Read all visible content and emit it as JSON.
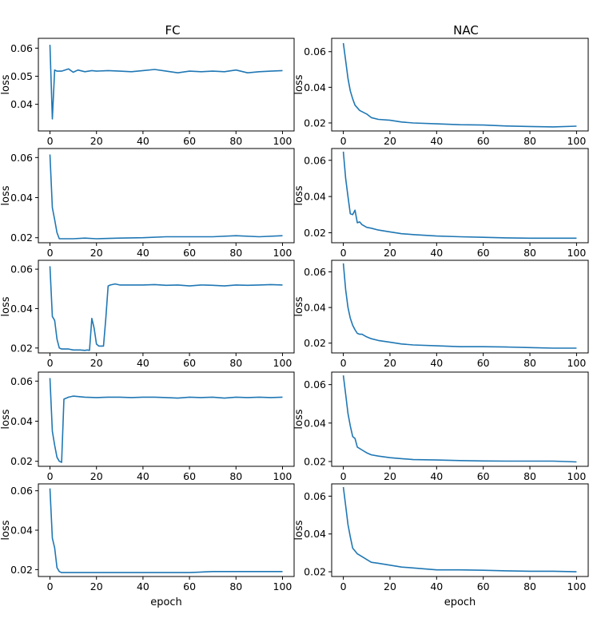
{
  "figure": {
    "col_titles": [
      "FC",
      "NAC"
    ],
    "ylabel": "loss",
    "xlabel": "epoch",
    "colors": {
      "line": "#1f77b4",
      "axes": "#000000",
      "background": "#ffffff"
    }
  },
  "chart_data": [
    {
      "type": "line",
      "title": "FC",
      "row": 1,
      "xlabel": "",
      "ylabel": "loss",
      "xlim": [
        -5,
        105
      ],
      "ylim": [
        0.0305,
        0.0635
      ],
      "xticks": [
        0,
        20,
        40,
        60,
        80,
        100
      ],
      "yticks": [
        0.04,
        0.05,
        0.06
      ],
      "series": [
        {
          "x": [
            0,
            1,
            2,
            3,
            5,
            8,
            10,
            12,
            15,
            18,
            20,
            25,
            30,
            35,
            40,
            45,
            50,
            55,
            60,
            65,
            70,
            75,
            80,
            85,
            90,
            95,
            100
          ],
          "y": [
            0.0612,
            0.0348,
            0.0522,
            0.0518,
            0.0518,
            0.0526,
            0.0514,
            0.0522,
            0.0516,
            0.052,
            0.0518,
            0.052,
            0.0518,
            0.0516,
            0.052,
            0.0524,
            0.0518,
            0.0512,
            0.0518,
            0.0516,
            0.0518,
            0.0516,
            0.0522,
            0.0512,
            0.0516,
            0.0518,
            0.052
          ]
        }
      ]
    },
    {
      "type": "line",
      "title": "NAC",
      "row": 1,
      "xlabel": "",
      "ylabel": "loss",
      "xlim": [
        -5,
        105
      ],
      "ylim": [
        0.0155,
        0.0675
      ],
      "xticks": [
        0,
        20,
        40,
        60,
        80,
        100
      ],
      "yticks": [
        0.02,
        0.04,
        0.06
      ],
      "series": [
        {
          "x": [
            0,
            1,
            2,
            3,
            4,
            5,
            7,
            10,
            12,
            15,
            20,
            25,
            30,
            40,
            50,
            60,
            70,
            80,
            90,
            100
          ],
          "y": [
            0.0648,
            0.055,
            0.045,
            0.038,
            0.0335,
            0.03,
            0.027,
            0.025,
            0.023,
            0.022,
            0.0215,
            0.0205,
            0.02,
            0.0195,
            0.019,
            0.0188,
            0.0183,
            0.018,
            0.0178,
            0.0182
          ]
        }
      ]
    },
    {
      "type": "line",
      "title": "",
      "row": 2,
      "xlabel": "",
      "ylabel": "loss",
      "xlim": [
        -5,
        105
      ],
      "ylim": [
        0.0175,
        0.0645
      ],
      "xticks": [
        0,
        20,
        40,
        60,
        80,
        100
      ],
      "yticks": [
        0.02,
        0.04,
        0.06
      ],
      "series": [
        {
          "x": [
            0,
            1,
            2,
            3,
            4,
            5,
            10,
            15,
            20,
            30,
            40,
            50,
            60,
            70,
            80,
            90,
            100
          ],
          "y": [
            0.0615,
            0.035,
            0.029,
            0.0225,
            0.0195,
            0.0195,
            0.0195,
            0.0198,
            0.0195,
            0.0198,
            0.02,
            0.0205,
            0.0205,
            0.0205,
            0.021,
            0.0205,
            0.021
          ]
        }
      ]
    },
    {
      "type": "line",
      "title": "",
      "row": 2,
      "xlabel": "",
      "ylabel": "loss",
      "xlim": [
        -5,
        105
      ],
      "ylim": [
        0.0145,
        0.0665
      ],
      "xticks": [
        0,
        20,
        40,
        60,
        80,
        100
      ],
      "yticks": [
        0.02,
        0.04,
        0.06
      ],
      "series": [
        {
          "x": [
            0,
            1,
            2,
            3,
            4,
            5,
            6,
            7,
            8,
            10,
            12,
            15,
            20,
            25,
            30,
            40,
            50,
            60,
            70,
            80,
            90,
            100
          ],
          "y": [
            0.0648,
            0.05,
            0.04,
            0.0305,
            0.03,
            0.0325,
            0.0255,
            0.026,
            0.0245,
            0.023,
            0.0225,
            0.0215,
            0.0205,
            0.0195,
            0.019,
            0.0182,
            0.0178,
            0.0175,
            0.0172,
            0.017,
            0.017,
            0.017
          ]
        }
      ]
    },
    {
      "type": "line",
      "title": "",
      "row": 3,
      "xlabel": "",
      "ylabel": "loss",
      "xlim": [
        -5,
        105
      ],
      "ylim": [
        0.0175,
        0.0645
      ],
      "xticks": [
        0,
        20,
        40,
        60,
        80,
        100
      ],
      "yticks": [
        0.02,
        0.04,
        0.06
      ],
      "series": [
        {
          "x": [
            0,
            1,
            2,
            3,
            4,
            5,
            8,
            10,
            13,
            15,
            16,
            17,
            18,
            19,
            20,
            21,
            22,
            23,
            24,
            25,
            26,
            28,
            30,
            35,
            40,
            45,
            50,
            55,
            60,
            65,
            70,
            75,
            80,
            85,
            90,
            95,
            100
          ],
          "y": [
            0.0615,
            0.036,
            0.034,
            0.0245,
            0.02,
            0.0195,
            0.0195,
            0.019,
            0.019,
            0.0188,
            0.019,
            0.0188,
            0.035,
            0.03,
            0.022,
            0.021,
            0.021,
            0.021,
            0.035,
            0.0515,
            0.052,
            0.0525,
            0.052,
            0.052,
            0.052,
            0.0522,
            0.0518,
            0.052,
            0.0515,
            0.052,
            0.0518,
            0.0515,
            0.052,
            0.0518,
            0.052,
            0.0522,
            0.052
          ]
        }
      ]
    },
    {
      "type": "line",
      "title": "",
      "row": 3,
      "xlabel": "",
      "ylabel": "loss",
      "xlim": [
        -5,
        105
      ],
      "ylim": [
        0.0145,
        0.0665
      ],
      "xticks": [
        0,
        20,
        40,
        60,
        80,
        100
      ],
      "yticks": [
        0.02,
        0.04,
        0.06
      ],
      "series": [
        {
          "x": [
            0,
            1,
            2,
            3,
            4,
            5,
            6,
            7,
            8,
            10,
            12,
            15,
            20,
            25,
            30,
            40,
            50,
            60,
            70,
            80,
            90,
            100
          ],
          "y": [
            0.0648,
            0.05,
            0.04,
            0.034,
            0.03,
            0.0275,
            0.0255,
            0.025,
            0.025,
            0.0235,
            0.0225,
            0.0215,
            0.0205,
            0.0195,
            0.019,
            0.0185,
            0.018,
            0.018,
            0.0178,
            0.0175,
            0.0172,
            0.0172
          ]
        }
      ]
    },
    {
      "type": "line",
      "title": "",
      "row": 4,
      "xlabel": "",
      "ylabel": "loss",
      "xlim": [
        -5,
        105
      ],
      "ylim": [
        0.0175,
        0.0645
      ],
      "xticks": [
        0,
        20,
        40,
        60,
        80,
        100
      ],
      "yticks": [
        0.02,
        0.04,
        0.06
      ],
      "series": [
        {
          "x": [
            0,
            1,
            2,
            3,
            4,
            5,
            6,
            8,
            10,
            15,
            20,
            25,
            30,
            35,
            40,
            45,
            50,
            55,
            60,
            65,
            70,
            75,
            80,
            85,
            90,
            95,
            100
          ],
          "y": [
            0.0615,
            0.035,
            0.028,
            0.022,
            0.02,
            0.0195,
            0.051,
            0.052,
            0.0525,
            0.052,
            0.0518,
            0.052,
            0.052,
            0.0518,
            0.052,
            0.052,
            0.0518,
            0.0515,
            0.052,
            0.0518,
            0.052,
            0.0515,
            0.052,
            0.0518,
            0.052,
            0.0518,
            0.052
          ]
        }
      ]
    },
    {
      "type": "line",
      "title": "",
      "row": 4,
      "xlabel": "",
      "ylabel": "loss",
      "xlim": [
        -5,
        105
      ],
      "ylim": [
        0.0175,
        0.0665
      ],
      "xticks": [
        0,
        20,
        40,
        60,
        80,
        100
      ],
      "yticks": [
        0.02,
        0.04,
        0.06
      ],
      "series": [
        {
          "x": [
            0,
            1,
            2,
            3,
            4,
            5,
            6,
            8,
            10,
            12,
            15,
            20,
            25,
            30,
            40,
            50,
            60,
            70,
            80,
            90,
            100
          ],
          "y": [
            0.0648,
            0.055,
            0.045,
            0.0385,
            0.033,
            0.032,
            0.0275,
            0.026,
            0.0245,
            0.0235,
            0.0228,
            0.022,
            0.0215,
            0.021,
            0.0208,
            0.0205,
            0.0203,
            0.0202,
            0.0202,
            0.0202,
            0.0198
          ]
        }
      ]
    },
    {
      "type": "line",
      "title": "",
      "row": 5,
      "xlabel": "epoch",
      "ylabel": "loss",
      "xlim": [
        -5,
        105
      ],
      "ylim": [
        0.0165,
        0.0635
      ],
      "xticks": [
        0,
        20,
        40,
        60,
        80,
        100
      ],
      "yticks": [
        0.02,
        0.04,
        0.06
      ],
      "series": [
        {
          "x": [
            0,
            1,
            2,
            3,
            4,
            5,
            6,
            8,
            10,
            15,
            20,
            30,
            40,
            50,
            60,
            70,
            80,
            90,
            100
          ],
          "y": [
            0.0612,
            0.036,
            0.031,
            0.021,
            0.019,
            0.0185,
            0.0185,
            0.0185,
            0.0185,
            0.0185,
            0.0185,
            0.0185,
            0.0185,
            0.0185,
            0.0185,
            0.019,
            0.019,
            0.019,
            0.019
          ]
        }
      ]
    },
    {
      "type": "line",
      "title": "",
      "row": 5,
      "xlabel": "epoch",
      "ylabel": "loss",
      "xlim": [
        -5,
        105
      ],
      "ylim": [
        0.0175,
        0.0665
      ],
      "xticks": [
        0,
        20,
        40,
        60,
        80,
        100
      ],
      "yticks": [
        0.02,
        0.04,
        0.06
      ],
      "series": [
        {
          "x": [
            0,
            1,
            2,
            3,
            4,
            5,
            6,
            8,
            10,
            12,
            15,
            20,
            25,
            30,
            40,
            50,
            60,
            70,
            80,
            90,
            100
          ],
          "y": [
            0.0648,
            0.055,
            0.045,
            0.0385,
            0.0325,
            0.031,
            0.0295,
            0.028,
            0.0265,
            0.025,
            0.0245,
            0.0235,
            0.0225,
            0.022,
            0.021,
            0.021,
            0.0208,
            0.0205,
            0.0203,
            0.0203,
            0.02
          ]
        }
      ]
    }
  ]
}
